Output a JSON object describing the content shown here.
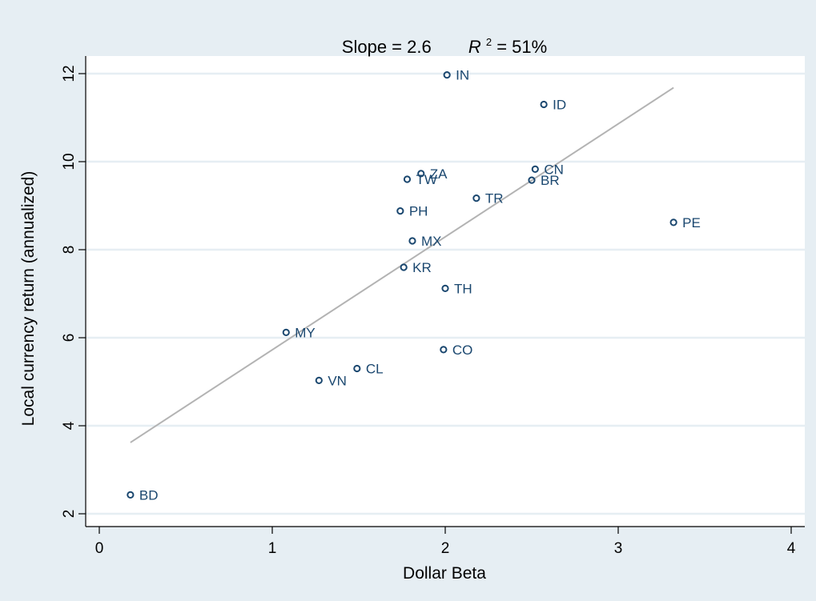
{
  "chart_data": {
    "type": "scatter",
    "title": {
      "prefix": "Slope = 2.6",
      "r_symbol": "R",
      "r_exponent": "2",
      "suffix": " = 51%"
    },
    "xlabel": "Dollar Beta",
    "ylabel": "Local currency return (annualized)",
    "xlim": [
      0,
      4
    ],
    "ylim": [
      2,
      12
    ],
    "xticks": [
      "0",
      "1",
      "2",
      "3",
      "4"
    ],
    "yticks": [
      "2",
      "4",
      "6",
      "8",
      "10",
      "12"
    ],
    "grid": true,
    "fit_line": {
      "x": [
        0.18,
        3.32
      ],
      "y": [
        3.62,
        11.68
      ]
    },
    "points": [
      {
        "label": "IN",
        "x": 2.01,
        "y": 11.97
      },
      {
        "label": "ID",
        "x": 2.57,
        "y": 11.3
      },
      {
        "label": "CN",
        "x": 2.52,
        "y": 9.83
      },
      {
        "label": "ZA",
        "x": 1.86,
        "y": 9.73
      },
      {
        "label": "TW",
        "x": 1.78,
        "y": 9.6
      },
      {
        "label": "BR",
        "x": 2.5,
        "y": 9.58
      },
      {
        "label": "TR",
        "x": 2.18,
        "y": 9.17
      },
      {
        "label": "PH",
        "x": 1.74,
        "y": 8.88
      },
      {
        "label": "PE",
        "x": 3.32,
        "y": 8.62
      },
      {
        "label": "MX",
        "x": 1.81,
        "y": 8.2
      },
      {
        "label": "KR",
        "x": 1.76,
        "y": 7.6
      },
      {
        "label": "TH",
        "x": 2.0,
        "y": 7.12
      },
      {
        "label": "MY",
        "x": 1.08,
        "y": 6.12
      },
      {
        "label": "CO",
        "x": 1.99,
        "y": 5.73
      },
      {
        "label": "CL",
        "x": 1.49,
        "y": 5.3
      },
      {
        "label": "VN",
        "x": 1.27,
        "y": 5.03
      },
      {
        "label": "BD",
        "x": 0.18,
        "y": 2.43
      }
    ],
    "colors": {
      "frame_background": "#e6eef3",
      "plot_background": "#ffffff",
      "grid": "#e6eef3",
      "marker": "#1a476f",
      "label": "#1a476f",
      "fit_line": "#b3b3b3"
    }
  }
}
